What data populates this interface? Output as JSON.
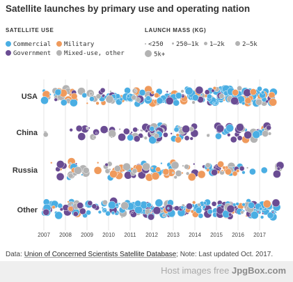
{
  "title": "Satellite launches by primary use and operating nation",
  "legend": {
    "use_heading": "SATELLITE USE",
    "use_items": [
      {
        "label": "Commercial",
        "color": "#4aaee3"
      },
      {
        "label": "Military",
        "color": "#ef9a5c"
      },
      {
        "label": "Government",
        "color": "#6a4c93"
      },
      {
        "label": "Mixed-use, other",
        "color": "#b3b3b3"
      }
    ],
    "mass_heading": "LAUNCH MASS (KG)",
    "mass_items": [
      "<250",
      "250–1k",
      "1–2k",
      "2–5k",
      "5k+"
    ]
  },
  "footer": {
    "prefix": "Data: ",
    "source": "Union of Concerned Scientists Satellite Database",
    "note": "; Note: Last updated Oct. 2017."
  },
  "watermark": {
    "prefix": "Host images free ",
    "brand": "JpgBox.com"
  },
  "chart_data": {
    "type": "scatter",
    "x_axis": {
      "ticks": [
        "2007",
        "2008",
        "2009",
        "2010",
        "2011",
        "2012",
        "2013",
        "2014",
        "2015",
        "2016",
        "2017"
      ],
      "range": [
        2006.8,
        2018.1
      ]
    },
    "rows": [
      "USA",
      "China",
      "Russia",
      "Other"
    ],
    "mass_categories": [
      "<250",
      "250–1k",
      "1–2k",
      "2–5k",
      "5k+"
    ],
    "uses": [
      "Commercial",
      "Military",
      "Government",
      "Mixed-use, other"
    ],
    "series": [
      {
        "row": "USA",
        "counts": [
          {
            "use": "Commercial",
            "periods": [
              [
                2007,
                2010,
                16
              ],
              [
                2010,
                2013,
                36
              ],
              [
                2013,
                2015,
                30
              ],
              [
                2015,
                2017.7,
                50
              ]
            ]
          },
          {
            "use": "Military",
            "periods": [
              [
                2007,
                2010,
                12
              ],
              [
                2010,
                2014,
                14
              ],
              [
                2014,
                2016,
                8
              ],
              [
                2016,
                2017.7,
                16
              ]
            ]
          },
          {
            "use": "Government",
            "periods": [
              [
                2007,
                2010,
                6
              ],
              [
                2010,
                2014,
                10
              ],
              [
                2014,
                2017.7,
                16
              ]
            ]
          },
          {
            "use": "Mixed-use, other",
            "periods": [
              [
                2007,
                2010,
                14
              ],
              [
                2010,
                2014,
                14
              ],
              [
                2014,
                2017.7,
                14
              ]
            ]
          }
        ]
      },
      {
        "row": "China",
        "counts": [
          {
            "use": "Commercial",
            "periods": [
              [
                2011,
                2013.7,
                16
              ],
              [
                2014.7,
                2017.5,
                10
              ]
            ]
          },
          {
            "use": "Military",
            "periods": [
              [
                2013,
                2014,
                2
              ],
              [
                2016,
                2017.4,
                4
              ]
            ]
          },
          {
            "use": "Government",
            "periods": [
              [
                2008,
                2011,
                12
              ],
              [
                2011,
                2014,
                24
              ],
              [
                2014.6,
                2017.5,
                16
              ]
            ]
          },
          {
            "use": "Mixed-use, other",
            "periods": [
              [
                2007,
                2007.4,
                2
              ],
              [
                2009,
                2011,
                8
              ],
              [
                2011,
                2014,
                20
              ],
              [
                2014.6,
                2017.5,
                12
              ]
            ]
          }
        ]
      },
      {
        "row": "Russia",
        "counts": [
          {
            "use": "Commercial",
            "periods": [
              [
                2008,
                2009,
                4
              ],
              [
                2010,
                2013,
                10
              ],
              [
                2014,
                2017.3,
                10
              ]
            ]
          },
          {
            "use": "Military",
            "periods": [
              [
                2007.3,
                2009,
                8
              ],
              [
                2009.5,
                2012.3,
                16
              ],
              [
                2012.6,
                2016,
                18
              ]
            ]
          },
          {
            "use": "Government",
            "periods": [
              [
                2007.5,
                2009,
                6
              ],
              [
                2009.5,
                2012.3,
                8
              ],
              [
                2012.6,
                2016.5,
                10
              ],
              [
                2017.8,
                2018,
                3
              ]
            ]
          },
          {
            "use": "Mixed-use, other",
            "periods": [
              [
                2007.5,
                2009,
                8
              ],
              [
                2009.5,
                2012.3,
                10
              ],
              [
                2012.6,
                2016.5,
                16
              ],
              [
                2017.8,
                2018,
                3
              ]
            ]
          }
        ]
      },
      {
        "row": "Other",
        "counts": [
          {
            "use": "Commercial",
            "periods": [
              [
                2007,
                2010,
                30
              ],
              [
                2010,
                2014,
                46
              ],
              [
                2014,
                2017.8,
                66
              ]
            ]
          },
          {
            "use": "Military",
            "periods": [
              [
                2007,
                2010,
                4
              ],
              [
                2010,
                2014,
                6
              ],
              [
                2014,
                2017.8,
                8
              ]
            ]
          },
          {
            "use": "Government",
            "periods": [
              [
                2007,
                2010,
                18
              ],
              [
                2010,
                2014,
                26
              ],
              [
                2014,
                2017.8,
                36
              ]
            ]
          },
          {
            "use": "Mixed-use, other",
            "periods": [
              [
                2007,
                2010,
                6
              ],
              [
                2010,
                2014,
                10
              ],
              [
                2014,
                2017.8,
                12
              ]
            ]
          }
        ]
      }
    ],
    "grid": true,
    "legend_position": "top"
  }
}
